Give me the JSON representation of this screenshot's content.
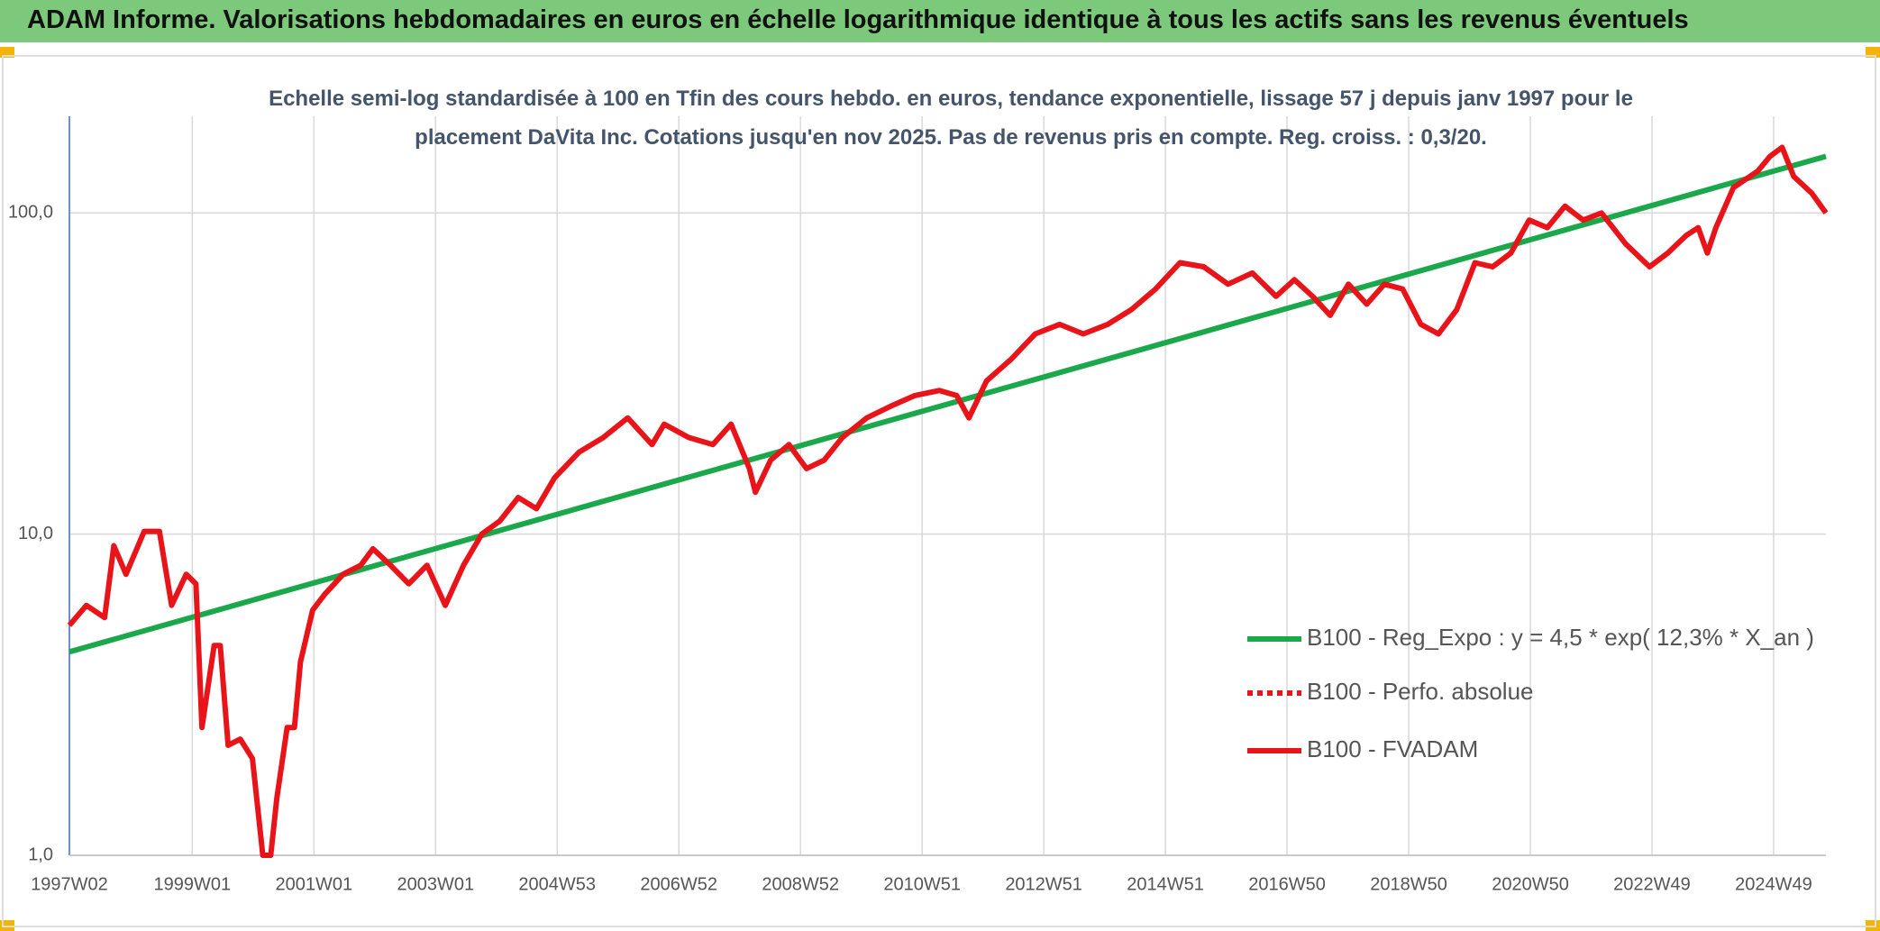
{
  "chart_data": {
    "type": "line",
    "title": "ADAM Informe. Valorisations hebdomadaires en euros en échelle logarithmique identique à tous les actifs sans les revenus éventuels",
    "subtitle": "Echelle semi-log standardisée à 100 en Tfin des cours hebdo. en euros, tendance exponentielle, lissage 57 j depuis janv 1997 pour le placement DaVita Inc. Cotations jusqu'en nov 2025. Pas de revenus pris en compte. Reg. croiss. : 0,3/20.",
    "log_y": true,
    "grid": true,
    "legend": "bottom-right",
    "xlim": [
      1997.02,
      2025.9
    ],
    "xticks": [
      {
        "value": 1997.02,
        "label": "1997W02"
      },
      {
        "value": 1999.04,
        "label": "1999W01"
      },
      {
        "value": 2001.04,
        "label": "2001W01"
      },
      {
        "value": 2003.04,
        "label": "2003W01"
      },
      {
        "value": 2005.04,
        "label": "2004W53"
      },
      {
        "value": 2007.04,
        "label": "2006W52"
      },
      {
        "value": 2009.04,
        "label": "2008W52"
      },
      {
        "value": 2011.04,
        "label": "2010W51"
      },
      {
        "value": 2013.04,
        "label": "2012W51"
      },
      {
        "value": 2015.04,
        "label": "2014W51"
      },
      {
        "value": 2017.04,
        "label": "2016W50"
      },
      {
        "value": 2019.04,
        "label": "2018W50"
      },
      {
        "value": 2021.04,
        "label": "2020W50"
      },
      {
        "value": 2023.04,
        "label": "2022W49"
      },
      {
        "value": 2025.04,
        "label": "2024W49"
      }
    ],
    "ylim": [
      1,
      200
    ],
    "yticks": [
      {
        "value": 1,
        "label": "1,0"
      },
      {
        "value": 10,
        "label": "10,0"
      },
      {
        "value": 100,
        "label": "100,0"
      }
    ],
    "series": [
      {
        "name": "B100 - Reg_Expo : y = 4,5 * exp( 12,3% *  X_an )",
        "color": "#1aa84a",
        "style": "solid",
        "x": [
          1997.02,
          2025.9
        ],
        "values": [
          4.3,
          150
        ]
      },
      {
        "name": "B100 - Perfo. absolue",
        "color": "#e8141a",
        "style": "dotted",
        "x": [],
        "values": []
      },
      {
        "name": "B100 - FVADAM",
        "color": "#e8141a",
        "style": "solid",
        "x": [
          1997.02,
          1997.3,
          1997.6,
          1997.75,
          1997.95,
          1998.25,
          1998.5,
          1998.7,
          1998.94,
          1999.1,
          1999.2,
          1999.4,
          1999.5,
          1999.63,
          1999.83,
          2000.03,
          2000.2,
          2000.33,
          2000.43,
          2000.6,
          2000.72,
          2000.82,
          2001.02,
          2001.22,
          2001.52,
          2001.81,
          2002.01,
          2002.3,
          2002.6,
          2002.9,
          2003.2,
          2003.5,
          2003.8,
          2004.1,
          2004.4,
          2004.7,
          2005.0,
          2005.4,
          2005.8,
          2006.2,
          2006.6,
          2006.8,
          2007.2,
          2007.6,
          2007.9,
          2008.2,
          2008.3,
          2008.55,
          2008.85,
          2009.14,
          2009.43,
          2009.73,
          2010.13,
          2010.52,
          2010.92,
          2011.32,
          2011.61,
          2011.81,
          2012.1,
          2012.5,
          2012.9,
          2013.3,
          2013.69,
          2014.09,
          2014.48,
          2014.88,
          2015.28,
          2015.67,
          2016.07,
          2016.47,
          2016.86,
          2017.16,
          2017.46,
          2017.75,
          2018.05,
          2018.35,
          2018.64,
          2018.94,
          2019.24,
          2019.53,
          2019.83,
          2020.13,
          2020.42,
          2020.72,
          2021.02,
          2021.32,
          2021.61,
          2021.91,
          2022.21,
          2022.61,
          2023.0,
          2023.3,
          2023.6,
          2023.8,
          2023.95,
          2024.09,
          2024.38,
          2024.78,
          2024.98,
          2025.18,
          2025.37,
          2025.67,
          2025.9
        ],
        "values": [
          5.2,
          6.0,
          5.5,
          9.2,
          7.5,
          10.2,
          10.2,
          6.0,
          7.5,
          7.0,
          2.5,
          4.5,
          4.5,
          2.2,
          2.3,
          2.0,
          1.0,
          1.0,
          1.5,
          2.5,
          2.5,
          4.0,
          5.8,
          6.5,
          7.5,
          8.0,
          9.0,
          8.0,
          7.0,
          8.0,
          6.0,
          8.0,
          10.0,
          11.0,
          13.0,
          12.0,
          15.0,
          18.0,
          20.0,
          23.0,
          19.0,
          22.0,
          20.0,
          19.0,
          22.0,
          16.0,
          13.5,
          17.0,
          19.0,
          16.0,
          17.0,
          20.0,
          23.0,
          25.0,
          27.0,
          28.0,
          27.0,
          23.0,
          30.0,
          35.0,
          42.0,
          45.0,
          42.0,
          45.0,
          50.0,
          58.0,
          70.0,
          68.0,
          60.0,
          65.0,
          55.0,
          62.0,
          55.0,
          48.0,
          60.0,
          52.0,
          60.0,
          58.0,
          45.0,
          42.0,
          50.0,
          70.0,
          68.0,
          75.0,
          95.0,
          90.0,
          105.0,
          95.0,
          100.0,
          80.0,
          68.0,
          75.0,
          85.0,
          90.0,
          75.0,
          90.0,
          120.0,
          135.0,
          150.0,
          160.0,
          130.0,
          115.0,
          100.0
        ]
      }
    ]
  }
}
